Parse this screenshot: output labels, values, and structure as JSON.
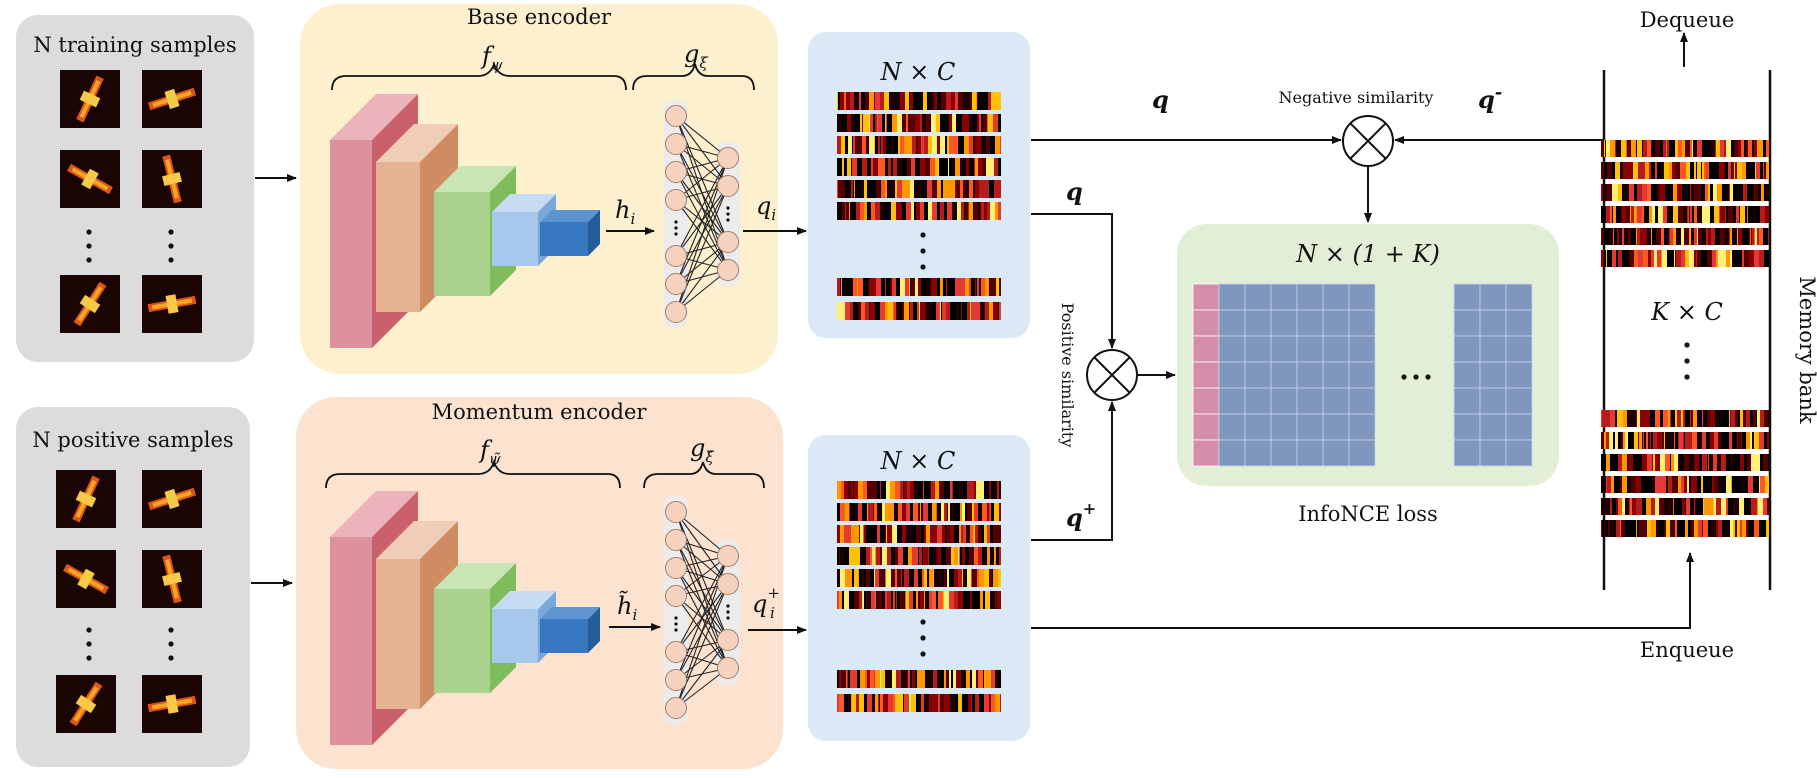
{
  "panels": {
    "training": {
      "title": "N training samples"
    },
    "positive": {
      "title": "N positive samples"
    },
    "base_encoder": {
      "title": "Base encoder",
      "f_label": "f",
      "f_sub": "ψ",
      "g_label": "g",
      "g_sub": "ξ",
      "h_label": "h",
      "h_sub": "i",
      "q_label": "q",
      "q_sub": "i"
    },
    "momentum_encoder": {
      "title": "Momentum encoder",
      "f_label": "f",
      "f_sub": "ψ̃",
      "g_label": "g",
      "g_sub": "ξ̃",
      "h_label": "h̃",
      "h_sub": "i",
      "q_label": "q",
      "q_sub": "i",
      "q_sup": "+"
    },
    "feature_top": {
      "title": "N × C"
    },
    "feature_bottom": {
      "title": "N × C"
    },
    "infonce": {
      "title": "N × (1 + K)",
      "caption": "InfoNCE loss"
    },
    "memory_bank": {
      "label": "Memory bank",
      "center": "K × C",
      "dequeue": "Dequeue",
      "enqueue": "Enqueue"
    }
  },
  "ops": {
    "negative": "Negative similarity",
    "positive": "Positive similarity"
  },
  "arrows": {
    "q_top": "q",
    "q_mid": "q",
    "q_plus": "q",
    "q_plus_sup": "+",
    "q_minus": "q",
    "q_minus_sup": "-"
  },
  "colors": {
    "sample_panel": "#dcdcdc",
    "base_panel": "#fdf0cf",
    "momentum_panel": "#fbe3d0",
    "feature_panel": "#dbe8f5",
    "infonce_panel": "#e3eed6",
    "matrix_cell": "#8097bd",
    "matrix_first_col": "#d58ea9"
  }
}
